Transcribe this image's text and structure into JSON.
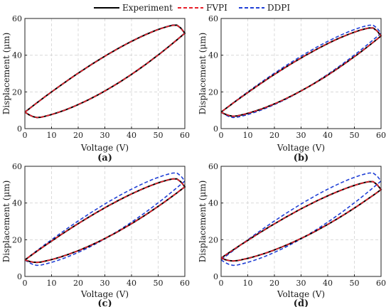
{
  "legend": {
    "entries": [
      {
        "label": "Experiment",
        "color": "#000000",
        "dash": "solid"
      },
      {
        "label": "FVPI",
        "color": "#e8202a",
        "dash": "dashed"
      },
      {
        "label": "DDPI",
        "color": "#1f3fd6",
        "dash": "dashed"
      }
    ]
  },
  "chart_data": [
    {
      "type": "line",
      "panel_label": "(a)",
      "xlabel": "Voltage (V)",
      "ylabel": "Displacement (μm)",
      "xlim": [
        0,
        60
      ],
      "ylim": [
        0,
        60
      ],
      "xticks": [
        0,
        10,
        20,
        30,
        40,
        50,
        60
      ],
      "yticks": [
        0,
        20,
        40,
        60
      ],
      "grid": true,
      "series": [
        {
          "name": "Experiment",
          "color": "#000000",
          "dash": "solid",
          "peak": 56.5,
          "base": 5.0,
          "start": 9.0
        },
        {
          "name": "FVPI",
          "color": "#e8202a",
          "dash": "dashed",
          "peak": 56.5,
          "base": 5.0,
          "start": 9.0
        },
        {
          "name": "DDPI",
          "color": "#1f3fd6",
          "dash": "dashed",
          "peak": 56.6,
          "base": 5.0,
          "start": 9.0
        }
      ]
    },
    {
      "type": "line",
      "panel_label": "(b)",
      "xlabel": "Voltage (V)",
      "ylabel": "Displacement (μm)",
      "xlim": [
        0,
        60
      ],
      "ylim": [
        0,
        60
      ],
      "xticks": [
        0,
        10,
        20,
        30,
        40,
        50,
        60
      ],
      "yticks": [
        0,
        20,
        40,
        60
      ],
      "grid": true,
      "series": [
        {
          "name": "Experiment",
          "color": "#000000",
          "dash": "solid",
          "peak": 55.0,
          "base": 5.8,
          "start": 9.0
        },
        {
          "name": "FVPI",
          "color": "#e8202a",
          "dash": "dashed",
          "peak": 55.0,
          "base": 5.8,
          "start": 9.0
        },
        {
          "name": "DDPI",
          "color": "#1f3fd6",
          "dash": "dashed",
          "peak": 56.5,
          "base": 5.0,
          "start": 9.0
        }
      ]
    },
    {
      "type": "line",
      "panel_label": "(c)",
      "xlabel": "Voltage (V)",
      "ylabel": "Displacement (μm)",
      "xlim": [
        0,
        60
      ],
      "ylim": [
        0,
        60
      ],
      "xticks": [
        0,
        10,
        20,
        30,
        40,
        50,
        60
      ],
      "yticks": [
        0,
        20,
        40,
        60
      ],
      "grid": true,
      "series": [
        {
          "name": "Experiment",
          "color": "#000000",
          "dash": "solid",
          "peak": 53.3,
          "base": 6.8,
          "start": 9.0
        },
        {
          "name": "FVPI",
          "color": "#e8202a",
          "dash": "dashed",
          "peak": 53.3,
          "base": 6.8,
          "start": 9.0
        },
        {
          "name": "DDPI",
          "color": "#1f3fd6",
          "dash": "dashed",
          "peak": 56.5,
          "base": 5.0,
          "start": 9.0
        }
      ]
    },
    {
      "type": "line",
      "panel_label": "(d)",
      "xlabel": "Voltage (V)",
      "ylabel": "Displacement (μm)",
      "xlim": [
        0,
        60
      ],
      "ylim": [
        0,
        60
      ],
      "xticks": [
        0,
        10,
        20,
        30,
        40,
        50,
        60
      ],
      "yticks": [
        0,
        20,
        40,
        60
      ],
      "grid": true,
      "series": [
        {
          "name": "Experiment",
          "color": "#000000",
          "dash": "solid",
          "peak": 51.8,
          "base": 7.6,
          "start": 10.0
        },
        {
          "name": "FVPI",
          "color": "#e8202a",
          "dash": "dashed",
          "peak": 51.8,
          "base": 7.6,
          "start": 10.0
        },
        {
          "name": "DDPI",
          "color": "#1f3fd6",
          "dash": "dashed",
          "peak": 56.5,
          "base": 5.0,
          "start": 9.0
        }
      ]
    }
  ]
}
